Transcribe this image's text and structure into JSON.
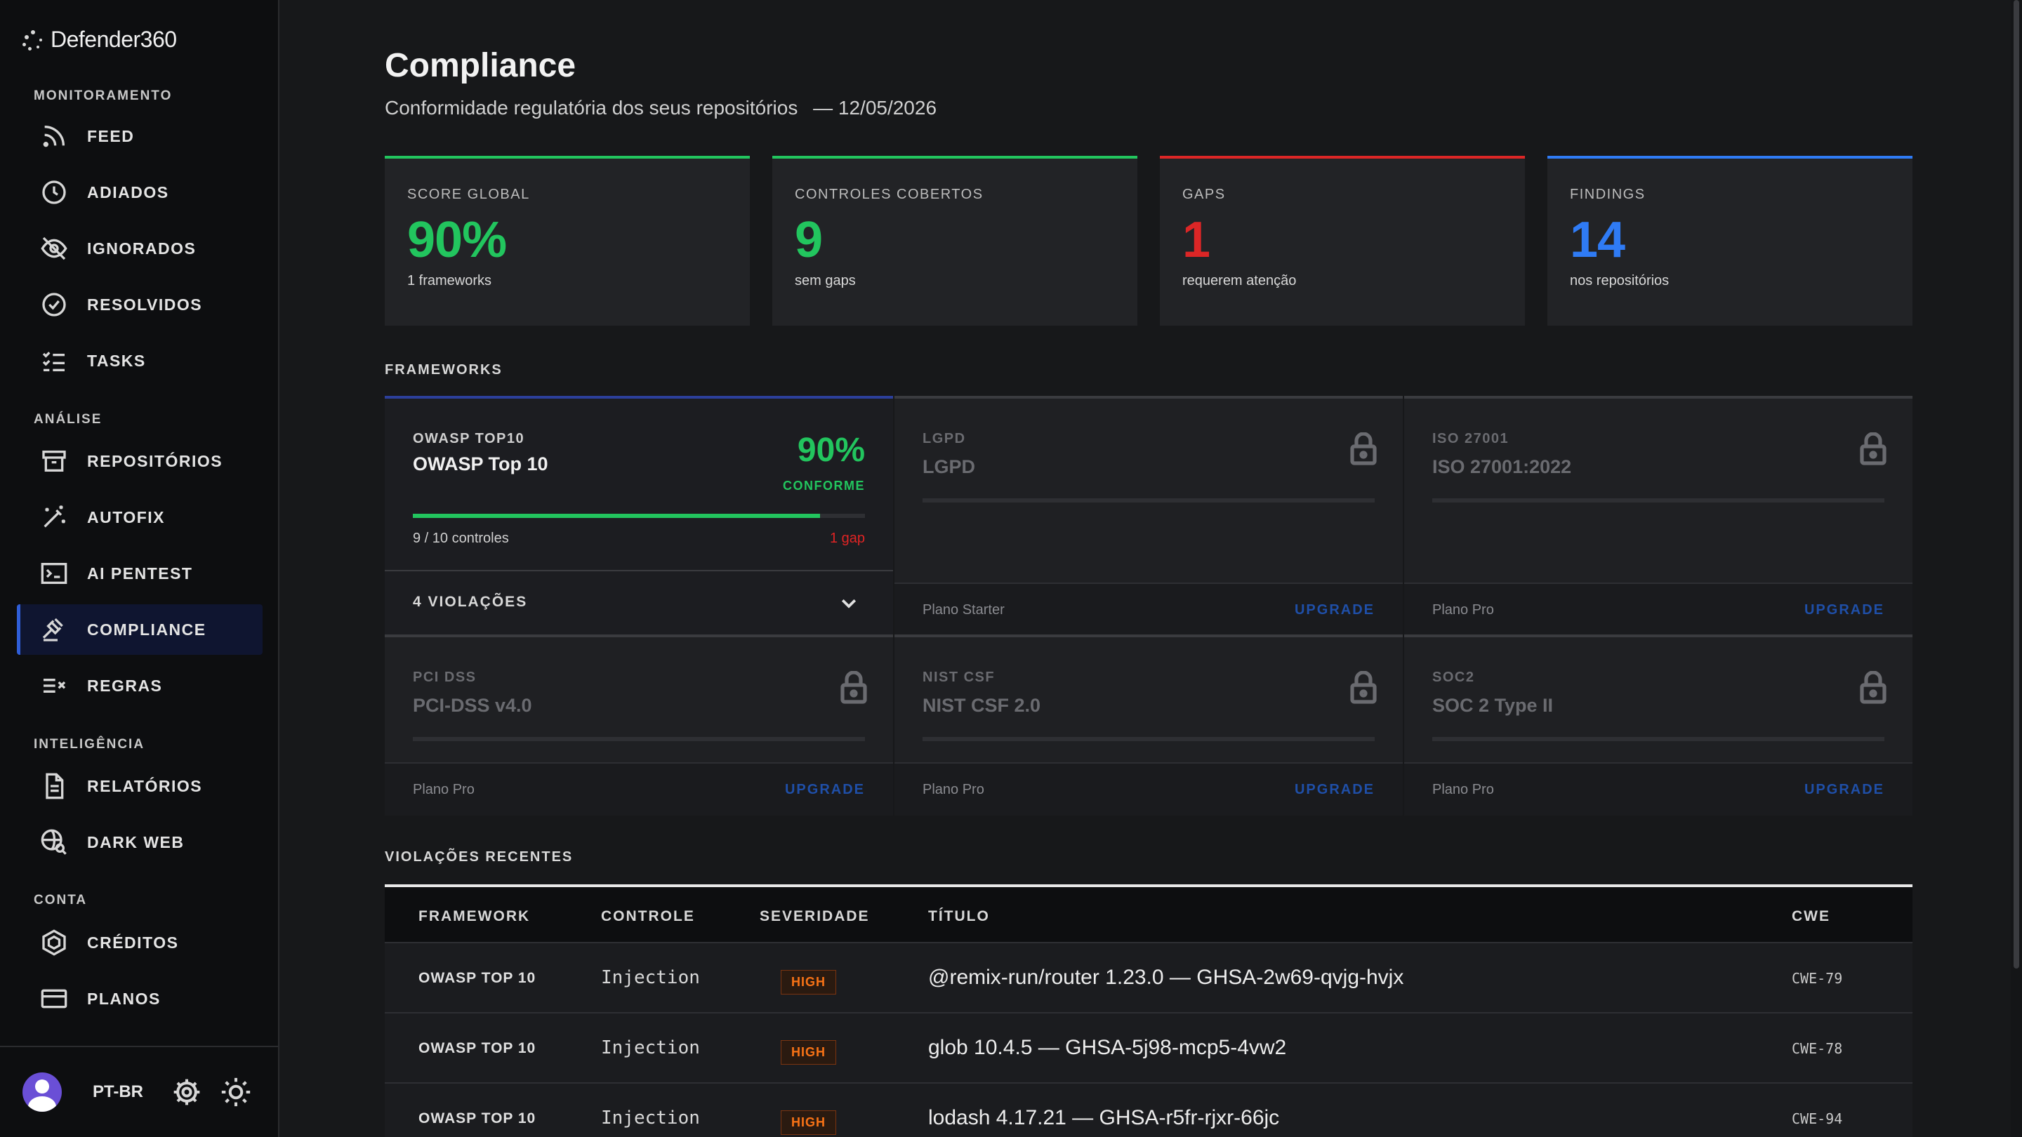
{
  "brand": {
    "name": "Defender360"
  },
  "sidebar": {
    "sections": {
      "monitoramento": "MONITORAMENTO",
      "analise": "ANÁLISE",
      "inteligencia": "INTELIGÊNCIA",
      "conta": "CONTA"
    },
    "items": [
      {
        "label": "FEED",
        "icon": "rss-icon"
      },
      {
        "label": "ADIADOS",
        "icon": "clock-icon"
      },
      {
        "label": "IGNORADOS",
        "icon": "eye-off-icon"
      },
      {
        "label": "RESOLVIDOS",
        "icon": "check-circle-icon"
      },
      {
        "label": "TASKS",
        "icon": "list-check-icon"
      },
      {
        "label": "REPOSITÓRIOS",
        "icon": "archive-icon"
      },
      {
        "label": "AUTOFIX",
        "icon": "magic-wand-icon"
      },
      {
        "label": "AI PENTEST",
        "icon": "terminal-icon"
      },
      {
        "label": "COMPLIANCE",
        "icon": "gavel-icon",
        "active": true
      },
      {
        "label": "REGRAS",
        "icon": "rules-icon"
      },
      {
        "label": "RELATÓRIOS",
        "icon": "document-icon"
      },
      {
        "label": "DARK WEB",
        "icon": "globe-search-icon"
      },
      {
        "label": "CRÉDITOS",
        "icon": "hexagon-icon"
      },
      {
        "label": "PLANOS",
        "icon": "credit-card-icon"
      }
    ],
    "footer": {
      "language": "PT-BR"
    }
  },
  "header": {
    "title": "Compliance",
    "subtitle": "Conformidade regulatória dos seus repositórios",
    "date": "— 12/05/2026"
  },
  "stats": [
    {
      "label": "SCORE GLOBAL",
      "value": "90%",
      "note": "1 frameworks",
      "color": "#22c55e"
    },
    {
      "label": "CONTROLES COBERTOS",
      "value": "9",
      "note": "sem gaps",
      "color": "#22c55e"
    },
    {
      "label": "GAPS",
      "value": "1",
      "note": "requerem atenção",
      "color": "#dc2626"
    },
    {
      "label": "FINDINGS",
      "value": "14",
      "note": "nos repositórios",
      "color": "#2f7bf5"
    }
  ],
  "frameworks_section": "FRAMEWORKS",
  "frameworks": [
    {
      "short": "OWASP TOP10",
      "name": "OWASP Top 10",
      "percent": "90%",
      "status": "CONFORME",
      "controls": "9 / 10 controles",
      "gap": "1 gap",
      "progress": 0.9,
      "violations": "4 VIOLAÇÕES"
    },
    {
      "short": "LGPD",
      "name": "LGPD",
      "plan": "Plano Starter",
      "upgrade": "UPGRADE"
    },
    {
      "short": "ISO 27001",
      "name": "ISO 27001:2022",
      "plan": "Plano Pro",
      "upgrade": "UPGRADE"
    },
    {
      "short": "PCI DSS",
      "name": "PCI-DSS v4.0",
      "plan": "Plano Pro",
      "upgrade": "UPGRADE"
    },
    {
      "short": "NIST CSF",
      "name": "NIST CSF 2.0",
      "plan": "Plano Pro",
      "upgrade": "UPGRADE"
    },
    {
      "short": "SOC2",
      "name": "SOC 2 Type II",
      "plan": "Plano Pro",
      "upgrade": "UPGRADE"
    }
  ],
  "violations_section": "VIOLAÇÕES RECENTES",
  "table": {
    "headers": {
      "framework": "FRAMEWORK",
      "controle": "CONTROLE",
      "severidade": "SEVERIDADE",
      "titulo": "TÍTULO",
      "cwe": "CWE"
    },
    "rows": [
      {
        "framework": "OWASP TOP 10",
        "controle": "Injection",
        "severidade": "HIGH",
        "titulo": "@remix-run/router 1.23.0 — GHSA-2w69-qvjg-hvjx",
        "cwe": "CWE-79"
      },
      {
        "framework": "OWASP TOP 10",
        "controle": "Injection",
        "severidade": "HIGH",
        "titulo": "glob 10.4.5 — GHSA-5j98-mcp5-4vw2",
        "cwe": "CWE-78"
      },
      {
        "framework": "OWASP TOP 10",
        "controle": "Injection",
        "severidade": "HIGH",
        "titulo": "lodash 4.17.21 — GHSA-r5fr-rjxr-66jc",
        "cwe": "CWE-94"
      }
    ]
  }
}
